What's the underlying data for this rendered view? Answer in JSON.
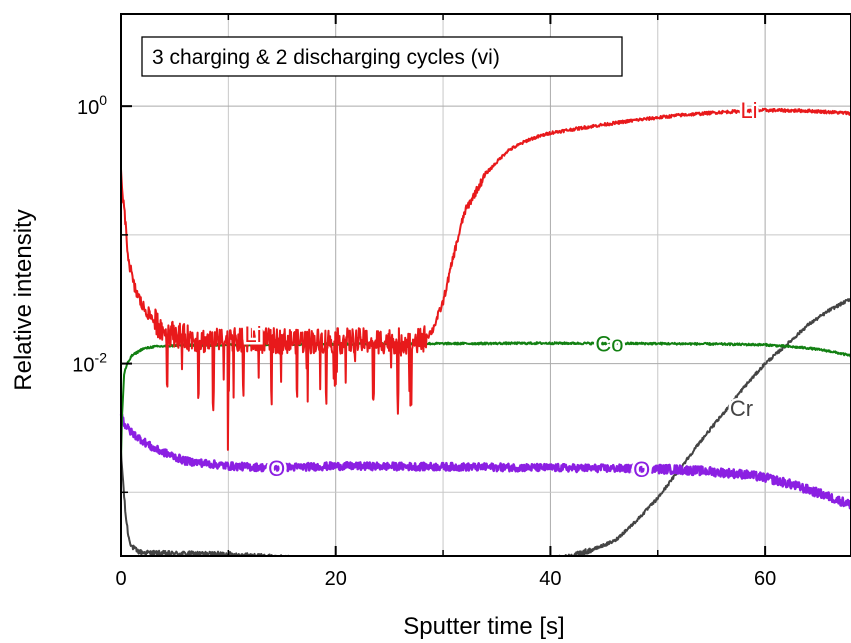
{
  "chart_data": {
    "type": "line",
    "title": "3 charging & 2 discharging cycles (vi)",
    "xlabel": "Sputter time [s]",
    "ylabel": "Relative intensity",
    "xlim": [
      0,
      68
    ],
    "x_scale": "linear",
    "y_scale": "log",
    "ylim": [
      0.00032,
      5.2
    ],
    "grid": true,
    "legend_placement": "top-left",
    "x_ticks": [
      "0",
      "20",
      "40",
      "60"
    ],
    "x_tick_values": [
      0,
      20,
      40,
      60
    ],
    "y_ticks": [
      {
        "base": "10",
        "exp": "0",
        "value": 1
      },
      {
        "base": "10",
        "exp": "-2",
        "value": 0.01
      }
    ],
    "series": [
      {
        "name": "Li",
        "color": "#e8191b",
        "x": [
          0,
          0.3,
          0.7,
          1.2,
          2,
          3,
          4,
          6,
          8,
          10,
          14,
          18,
          22,
          26,
          28,
          29,
          30,
          31,
          32,
          34,
          36,
          38,
          40,
          44,
          48,
          52,
          56,
          60,
          64,
          68
        ],
        "y": [
          0.3,
          0.15,
          0.065,
          0.04,
          0.028,
          0.022,
          0.018,
          0.016,
          0.015,
          0.015,
          0.015,
          0.015,
          0.015,
          0.015,
          0.015,
          0.018,
          0.03,
          0.07,
          0.15,
          0.3,
          0.45,
          0.55,
          0.62,
          0.7,
          0.78,
          0.85,
          0.9,
          0.93,
          0.92,
          0.88
        ],
        "noise": {
          "x_range": [
            3,
            28
          ],
          "spikes": [
            4.3,
            7.2,
            8.6,
            10.0,
            11.4,
            14.0,
            16.4,
            19.1,
            23.5,
            25.8,
            27.0
          ]
        }
      },
      {
        "name": "Co",
        "color": "#128012",
        "x": [
          0,
          0.1,
          0.3,
          0.6,
          1,
          2,
          3,
          5,
          10,
          20,
          30,
          40,
          50,
          55,
          60,
          64,
          66,
          68
        ],
        "y": [
          0.0018,
          0.004,
          0.0085,
          0.01,
          0.0115,
          0.013,
          0.0135,
          0.0138,
          0.014,
          0.0142,
          0.0143,
          0.0144,
          0.0143,
          0.0142,
          0.014,
          0.0132,
          0.0125,
          0.0115
        ]
      },
      {
        "name": "O",
        "color": "#8b1fe2",
        "x": [
          0,
          0.3,
          1,
          3,
          6,
          10,
          14,
          20,
          30,
          40,
          50,
          52,
          55,
          58,
          60,
          62,
          64,
          66,
          68
        ],
        "y": [
          0.0042,
          0.0034,
          0.0029,
          0.0022,
          0.00175,
          0.0016,
          0.00155,
          0.0016,
          0.00158,
          0.00155,
          0.00152,
          0.0015,
          0.00145,
          0.00138,
          0.0013,
          0.00118,
          0.00105,
          0.00092,
          0.0008
        ]
      },
      {
        "name": "Cr",
        "color": "#444444",
        "x": [
          0,
          0.2,
          0.4,
          0.7,
          1,
          1.5,
          2,
          4,
          10,
          15,
          20,
          30,
          40,
          42,
          44,
          46,
          48,
          50,
          52,
          54,
          56,
          58,
          60,
          62,
          64,
          66,
          68
        ],
        "y": [
          0.002,
          0.0012,
          0.0007,
          0.00045,
          0.00038,
          0.00035,
          0.00034,
          0.000335,
          0.00033,
          0.00031,
          0.0003,
          0.0003,
          0.0003,
          0.00032,
          0.00036,
          0.00042,
          0.0006,
          0.0009,
          0.0015,
          0.0025,
          0.004,
          0.0065,
          0.01,
          0.014,
          0.02,
          0.026,
          0.032
        ]
      }
    ],
    "annotations": [
      {
        "text": "Li",
        "series": "Li",
        "x": 58.5,
        "y": 0.93
      },
      {
        "text": "Li",
        "series": "Li",
        "x": 12.3,
        "y": 0.017
      },
      {
        "text": "Co",
        "series": "Co",
        "x": 45.5,
        "y": 0.0143
      },
      {
        "text": "O",
        "series": "O",
        "x": 14.5,
        "y": 0.00155
      },
      {
        "text": "O",
        "series": "O",
        "x": 48.5,
        "y": 0.00152
      },
      {
        "text": "Cr",
        "series": "Cr",
        "x": 57.8,
        "y": 0.0045
      }
    ]
  }
}
